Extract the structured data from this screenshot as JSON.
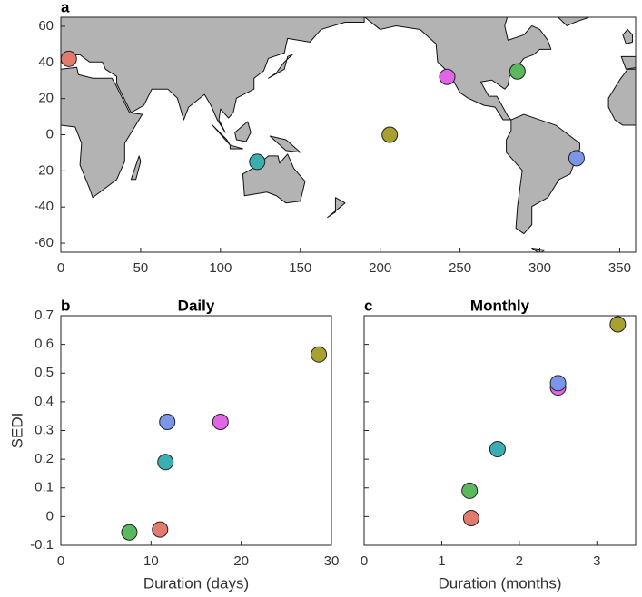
{
  "chart_data": [
    {
      "type": "scatter",
      "label": "a",
      "x": [
        5,
        242,
        286,
        206,
        323,
        123
      ],
      "y": [
        42,
        32,
        35,
        0,
        -13,
        -15
      ],
      "colors": [
        "#e07b6e",
        "#e066e8",
        "#5cb85c",
        "#a8a030",
        "#7b96e8",
        "#3aaeb0"
      ],
      "xlim": [
        0,
        360
      ],
      "ylim": [
        -65,
        65
      ],
      "xticks": [
        0,
        50,
        100,
        150,
        200,
        250,
        300,
        350
      ],
      "yticks": [
        -60,
        -40,
        -20,
        0,
        20,
        40,
        60
      ]
    },
    {
      "type": "scatter",
      "label": "b",
      "title": "Daily",
      "xlabel": "Duration (days)",
      "ylabel": "SEDI",
      "x": [
        11,
        17.7,
        7.6,
        28.6,
        11.8,
        11.6
      ],
      "y": [
        -0.045,
        0.33,
        -0.055,
        0.565,
        0.33,
        0.19
      ],
      "colors": [
        "#e07b6e",
        "#e066e8",
        "#5cb85c",
        "#a8a030",
        "#7b96e8",
        "#3aaeb0"
      ],
      "xlim": [
        0,
        30
      ],
      "ylim": [
        -0.1,
        0.7
      ],
      "xticks": [
        0,
        10,
        20,
        30
      ],
      "yticks": [
        -0.1,
        0,
        0.1,
        0.2,
        0.3,
        0.4,
        0.5,
        0.6,
        0.7
      ]
    },
    {
      "type": "scatter",
      "label": "c",
      "title": "Monthly",
      "xlabel": "Duration (months)",
      "x": [
        1.38,
        2.5,
        1.36,
        3.27,
        2.5,
        1.72
      ],
      "y": [
        -0.005,
        0.45,
        0.09,
        0.67,
        0.465,
        0.235
      ],
      "colors": [
        "#e07b6e",
        "#e066e8",
        "#5cb85c",
        "#a8a030",
        "#7b96e8",
        "#3aaeb0"
      ],
      "xlim": [
        0,
        3.5
      ],
      "ylim": [
        -0.1,
        0.7
      ],
      "xticks": [
        0,
        1,
        2,
        3
      ],
      "yticks": [
        -0.1,
        0,
        0.1,
        0.2,
        0.3,
        0.4,
        0.5,
        0.6,
        0.7
      ],
      "ytick_labels": false
    }
  ]
}
